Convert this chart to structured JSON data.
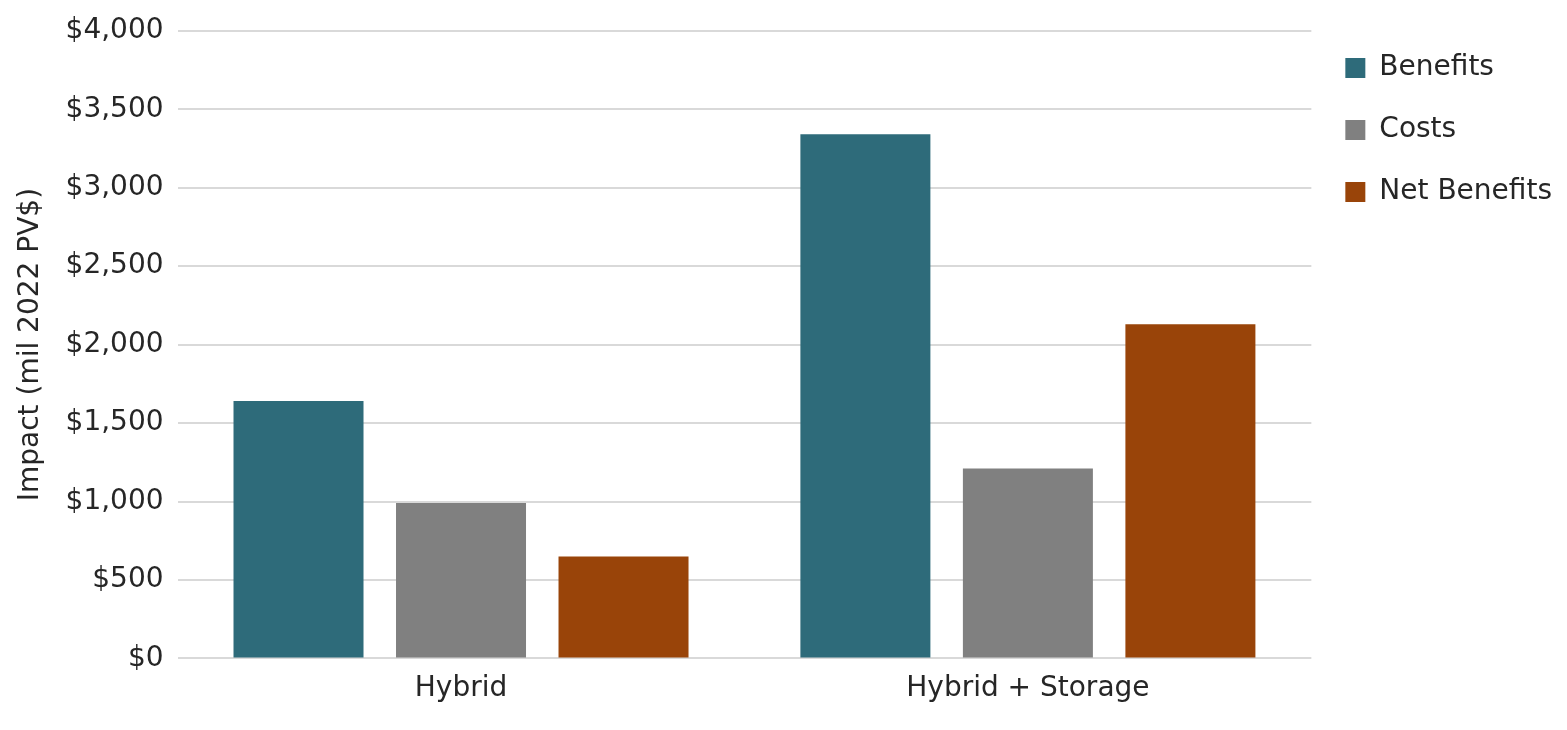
{
  "chart_data": {
    "type": "bar",
    "ylabel": "Impact (mil 2022 PV$)",
    "categories": [
      "Hybrid",
      "Hybrid + Storage"
    ],
    "series": [
      {
        "name": "Benefits",
        "color": "#2e6b7a",
        "values": [
          1640,
          3340
        ]
      },
      {
        "name": "Costs",
        "color": "#808080",
        "values": [
          990,
          1210
        ]
      },
      {
        "name": "Net Benefits",
        "color": "#994409",
        "values": [
          650,
          2130
        ]
      }
    ],
    "ylim": [
      0,
      4000
    ],
    "yticks": [
      {
        "value": 0,
        "label": "$0"
      },
      {
        "value": 500,
        "label": "$500"
      },
      {
        "value": 1000,
        "label": "$1,000"
      },
      {
        "value": 1500,
        "label": "$1,500"
      },
      {
        "value": 2000,
        "label": "$2,000"
      },
      {
        "value": 2500,
        "label": "$2,500"
      },
      {
        "value": 3000,
        "label": "$3,000"
      },
      {
        "value": 3500,
        "label": "$3,500"
      },
      {
        "value": 4000,
        "label": "$4,000"
      }
    ],
    "grid": "y",
    "legend": "right"
  }
}
